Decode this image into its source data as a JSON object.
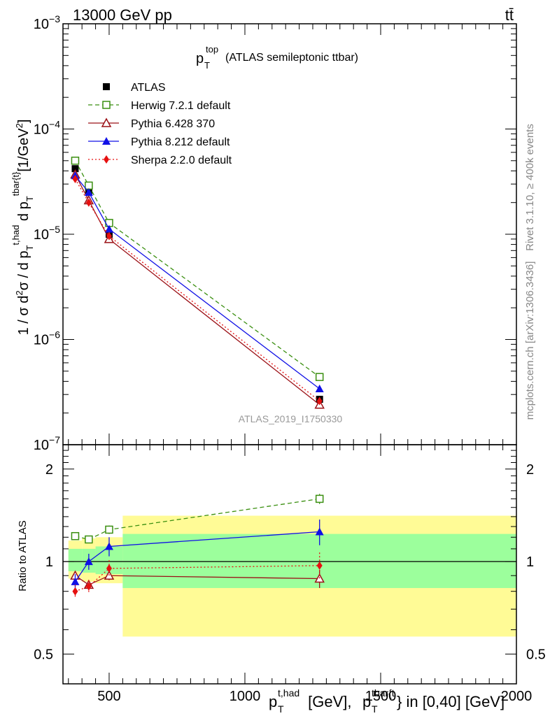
{
  "header": {
    "energy_label": "13000 GeV pp",
    "process_label": "tt̄"
  },
  "side_labels": {
    "rivet": "Rivet 3.1.10, ≥ 400k events",
    "mcplots": "mcplots.cern.ch [arXiv:1306.3436]"
  },
  "watermark": "ATLAS_2019_I1750330",
  "chart_data": [
    {
      "type": "line",
      "title": "p_T^top (ATLAS semileptonic ttbar)",
      "title_main": "p",
      "title_sub": "T",
      "title_sup": "top",
      "title_rest": "(ATLAS semileptonic ttbar)",
      "ylabel": "1 / σ d²σ / d p_T^{t,had} d p_T^{tbar{t}} [1/GeV²]",
      "yscale": "log",
      "ylim": [
        1e-07,
        0.001
      ],
      "y_ticks": [
        {
          "value": 1e-07,
          "label": "10",
          "exp": "−7"
        },
        {
          "value": 1e-06,
          "label": "10",
          "exp": "−6"
        },
        {
          "value": 1e-05,
          "label": "10",
          "exp": "−5"
        },
        {
          "value": 0.0001,
          "label": "10",
          "exp": "−4"
        },
        {
          "value": 0.001,
          "label": "10",
          "exp": "−3"
        }
      ],
      "xlim": [
        330,
        2000
      ],
      "legend_position": "top-left",
      "series": [
        {
          "name": "ATLAS",
          "color": "#000000",
          "marker": "square-filled",
          "line": "none",
          "x": [
            375,
            425,
            500,
            1275
          ],
          "y": [
            4.2e-05,
            2.5e-05,
            1e-05,
            2.7e-07
          ]
        },
        {
          "name": "Herwig 7.2.1 default",
          "color": "#3a8f10",
          "marker": "square-open",
          "line": "dashed",
          "x": [
            375,
            425,
            500,
            1275
          ],
          "y": [
            5e-05,
            2.9e-05,
            1.28e-05,
            4.4e-07
          ]
        },
        {
          "name": "Pythia 6.428 370",
          "color": "#9b1016",
          "marker": "triangle-open",
          "line": "solid",
          "x": [
            375,
            425,
            500,
            1275
          ],
          "y": [
            3.7e-05,
            2.1e-05,
            9e-06,
            2.4e-07
          ]
        },
        {
          "name": "Pythia 8.212 default",
          "color": "#1010e6",
          "marker": "triangle-filled",
          "line": "solid",
          "x": [
            375,
            425,
            500,
            1275
          ],
          "y": [
            3.6e-05,
            2.5e-05,
            1.12e-05,
            3.4e-07
          ]
        },
        {
          "name": "Sherpa 2.2.0 default",
          "color": "#e61010",
          "marker": "diamond-filled",
          "line": "dotted",
          "x": [
            375,
            425,
            500,
            1275
          ],
          "y": [
            3.35e-05,
            2e-05,
            9.6e-06,
            2.6e-07
          ]
        }
      ]
    },
    {
      "type": "line",
      "title": "Ratio to ATLAS",
      "ylabel": "Ratio to ATLAS",
      "xlabel": "p_T^{t,had} [GeV], p_T^{tbar{t}} in [0,40] [GeV]",
      "xlabel_parts": {
        "p1": "p",
        "s1": "T",
        "u1": "t,had",
        "mid": " [GeV], ",
        "p2": "p",
        "s2": "T",
        "u2": "tbar{t",
        "end": "} in [0,40] [GeV]"
      },
      "yscale": "log",
      "ylim": [
        0.4,
        2.4
      ],
      "xlim": [
        330,
        2000
      ],
      "x_ticks": [
        {
          "value": 500,
          "label": "500"
        },
        {
          "value": 1000,
          "label": "1000"
        },
        {
          "value": 1500,
          "label": "1500"
        },
        {
          "value": 2000,
          "label": "2000"
        }
      ],
      "y_ticks": [
        {
          "value": 0.5,
          "label": "0.5"
        },
        {
          "value": 1,
          "label": "1"
        },
        {
          "value": 2,
          "label": "2"
        }
      ],
      "uncertainty_bands": [
        {
          "x_range": [
            350,
            400
          ],
          "green": [
            0.93,
            1.1
          ],
          "yellow": [
            0.88,
            1.17
          ]
        },
        {
          "x_range": [
            400,
            450
          ],
          "green": [
            0.92,
            1.1
          ],
          "yellow": [
            0.86,
            1.19
          ]
        },
        {
          "x_range": [
            450,
            550
          ],
          "green": [
            0.91,
            1.12
          ],
          "yellow": [
            0.85,
            1.2
          ]
        },
        {
          "x_range": [
            550,
            2000
          ],
          "green": [
            0.82,
            1.23
          ],
          "yellow": [
            0.57,
            1.41
          ]
        }
      ],
      "series": [
        {
          "name": "Herwig 7.2.1 default",
          "color": "#3a8f10",
          "marker": "square-open",
          "line": "dashed",
          "x": [
            375,
            425,
            500,
            1275
          ],
          "y": [
            1.21,
            1.18,
            1.27,
            1.6
          ],
          "err": [
            0.03,
            0.03,
            0.04,
            0.06
          ]
        },
        {
          "name": "Pythia 6.428 370",
          "color": "#9b1016",
          "marker": "triangle-open",
          "line": "solid",
          "x": [
            375,
            425,
            500,
            1275
          ],
          "y": [
            0.9,
            0.84,
            0.9,
            0.88
          ],
          "err": [
            0.03,
            0.03,
            0.03,
            0.06
          ]
        },
        {
          "name": "Pythia 8.212 default",
          "color": "#1010e6",
          "marker": "triangle-filled",
          "line": "solid",
          "x": [
            375,
            425,
            500,
            1275
          ],
          "y": [
            0.86,
            1.0,
            1.12,
            1.25
          ],
          "err": [
            0.05,
            0.06,
            0.08,
            0.12
          ]
        },
        {
          "name": "Sherpa 2.2.0 default",
          "color": "#e61010",
          "marker": "diamond-filled",
          "line": "dotted",
          "x": [
            375,
            425,
            500,
            1275
          ],
          "y": [
            0.8,
            0.83,
            0.95,
            0.97
          ],
          "err": [
            0.04,
            0.04,
            0.06,
            0.1
          ]
        }
      ]
    }
  ]
}
